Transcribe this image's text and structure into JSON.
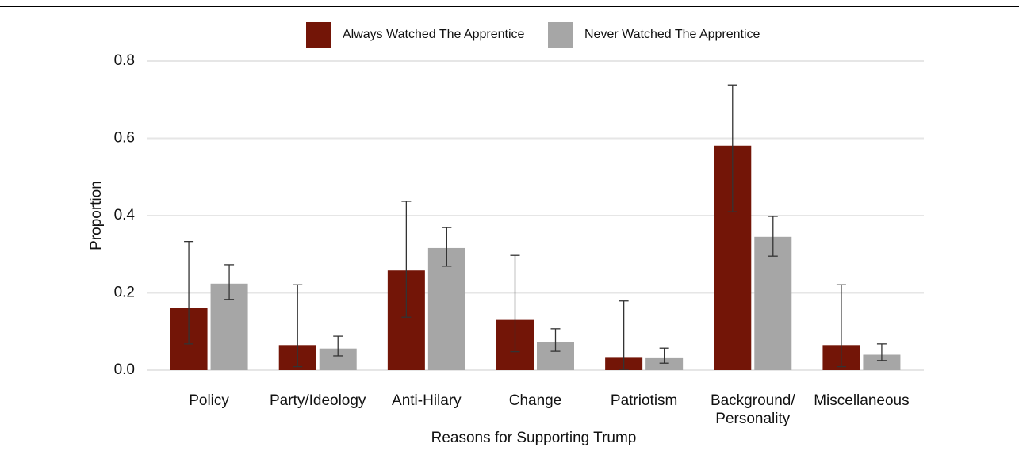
{
  "chart_data": {
    "type": "bar",
    "categories": [
      "Policy",
      "Party/Ideology",
      "Anti-Hilary",
      "Change",
      "Patriotism",
      "Background/\nPersonality",
      "Miscellaneous"
    ],
    "series": [
      {
        "name": "Always Watched The Apprentice",
        "color": "#731507",
        "values": [
          0.162,
          0.065,
          0.258,
          0.13,
          0.032,
          0.581,
          0.065
        ],
        "ci_low": [
          0.068,
          0.009,
          0.137,
          0.048,
          0.002,
          0.41,
          0.009
        ],
        "ci_high": [
          0.333,
          0.221,
          0.437,
          0.297,
          0.179,
          0.738,
          0.221
        ]
      },
      {
        "name": "Never Watched The Apprentice",
        "color": "#a6a6a6",
        "values": [
          0.224,
          0.056,
          0.316,
          0.072,
          0.031,
          0.345,
          0.04
        ],
        "ci_low": [
          0.183,
          0.037,
          0.269,
          0.049,
          0.018,
          0.295,
          0.025
        ],
        "ci_high": [
          0.273,
          0.088,
          0.369,
          0.107,
          0.057,
          0.398,
          0.068
        ]
      }
    ],
    "ylim": [
      0,
      0.8
    ],
    "yticks": [
      {
        "value": 0,
        "label": "0.0"
      },
      {
        "value": 0.2,
        "label": "0.2"
      },
      {
        "value": 0.4,
        "label": "0.4"
      },
      {
        "value": 0.6,
        "label": "0.6"
      },
      {
        "value": 0.8,
        "label": "0.8"
      }
    ],
    "xlabel": "Reasons for Supporting Trump",
    "ylabel": "Proportion",
    "grid": true,
    "legend": "top"
  }
}
